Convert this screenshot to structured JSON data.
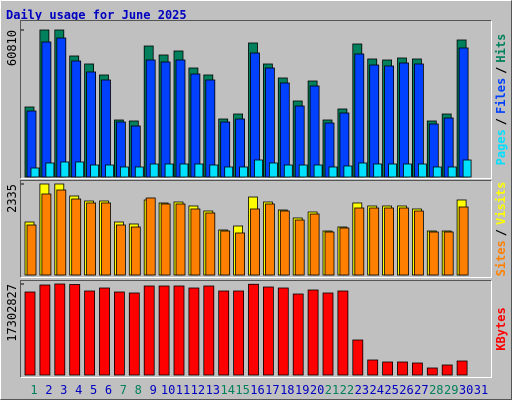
{
  "title": "Daily usage for June 2025",
  "legend_separator": "/",
  "chart_data": [
    {
      "type": "bar",
      "ylim": [
        0,
        60810
      ],
      "yticks": [
        60810
      ],
      "series": [
        {
          "name": "Hits",
          "color": "#00805c",
          "values": [
            28960,
            60810,
            60810,
            50060,
            46750,
            42200,
            23580,
            23170,
            54190,
            50470,
            52130,
            45090,
            42200,
            23990,
            26060,
            55440,
            46750,
            40960,
            31440,
            39710,
            23580,
            28130,
            55020,
            48820,
            48400,
            49230,
            48820,
            23170,
            26060,
            56680,
            0
          ]
        },
        {
          "name": "Files",
          "color": "#0040ff",
          "values": [
            27300,
            55850,
            57500,
            47990,
            43440,
            40130,
            22750,
            21100,
            48400,
            47580,
            48400,
            42610,
            40130,
            22750,
            23990,
            51300,
            45090,
            38890,
            29370,
            37650,
            22340,
            26480,
            50890,
            46330,
            45920,
            47160,
            46750,
            21930,
            24410,
            53370,
            0
          ]
        },
        {
          "name": "Pages",
          "color": "#00e0ff",
          "values": [
            3720,
            5790,
            6210,
            6210,
            4960,
            4960,
            4140,
            4140,
            5380,
            5380,
            5380,
            5380,
            4960,
            4140,
            4140,
            7030,
            5790,
            4960,
            4960,
            4960,
            4140,
            4550,
            5790,
            5380,
            5380,
            5380,
            5380,
            4140,
            4140,
            7030,
            0
          ]
        }
      ]
    },
    {
      "type": "bar",
      "ylim": [
        0,
        2335
      ],
      "yticks": [
        2335
      ],
      "series": [
        {
          "name": "Visits",
          "color": "#ffff00",
          "values": [
            1360,
            2335,
            2335,
            2027,
            1899,
            1899,
            1360,
            1309,
            1925,
            1848,
            1873,
            1771,
            1642,
            1155,
            1257,
            2001,
            1873,
            1668,
            1463,
            1617,
            1129,
            1232,
            1848,
            1771,
            1771,
            1771,
            1694,
            1129,
            1129,
            1925,
            0
          ]
        },
        {
          "name": "Sites",
          "color": "#ff8000",
          "values": [
            1283,
            2078,
            2181,
            1950,
            1848,
            1848,
            1283,
            1232,
            1976,
            1822,
            1822,
            1694,
            1591,
            1129,
            1078,
            1694,
            1822,
            1642,
            1411,
            1565,
            1103,
            1206,
            1719,
            1719,
            1719,
            1719,
            1642,
            1103,
            1103,
            1745,
            0
          ]
        }
      ]
    },
    {
      "type": "bar",
      "ylim": [
        0,
        17302827
      ],
      "yticks": [
        17302827
      ],
      "categories": [
        "1",
        "2",
        "3",
        "4",
        "5",
        "6",
        "7",
        "8",
        "9",
        "10",
        "11",
        "12",
        "13",
        "14",
        "15",
        "16",
        "17",
        "18",
        "19",
        "20",
        "21",
        "22",
        "23",
        "24",
        "25",
        "26",
        "27",
        "28",
        "29",
        "30",
        "31"
      ],
      "category_colors": [
        "#00805c",
        "#0000c0",
        "#0000c0",
        "#0000c0",
        "#0000c0",
        "#0000c0",
        "#00805c",
        "#00805c",
        "#0000c0",
        "#0000c0",
        "#0000c0",
        "#0000c0",
        "#0000c0",
        "#00805c",
        "#00805c",
        "#0000c0",
        "#0000c0",
        "#0000c0",
        "#0000c0",
        "#0000c0",
        "#00805c",
        "#00805c",
        "#0000c0",
        "#0000c0",
        "#0000c0",
        "#0000c0",
        "#0000c0",
        "#00805c",
        "#00805c",
        "#0000c0",
        "#0000c0"
      ],
      "series": [
        {
          "name": "KBytes",
          "color": "#ff0000",
          "values": [
            15781700,
            17112700,
            17302827,
            17207800,
            15971800,
            16542300,
            15781700,
            15591600,
            16922500,
            16922500,
            16922500,
            16542300,
            16922500,
            15971800,
            15971800,
            17255000,
            16732400,
            16542300,
            15401400,
            16162000,
            15591600,
            15971800,
            6654900,
            2852100,
            2471800,
            2471800,
            2281700,
            1331000,
            1901400,
            2662000,
            0
          ]
        }
      ]
    }
  ]
}
